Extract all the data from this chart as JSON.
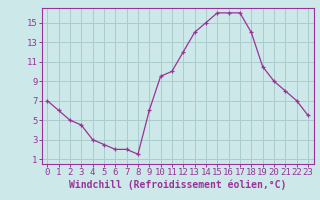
{
  "x": [
    0,
    1,
    2,
    3,
    4,
    5,
    6,
    7,
    8,
    9,
    10,
    11,
    12,
    13,
    14,
    15,
    16,
    17,
    18,
    19,
    20,
    21,
    22,
    23
  ],
  "y": [
    7,
    6,
    5,
    4.5,
    3,
    2.5,
    2,
    2,
    1.5,
    6,
    9.5,
    10,
    12,
    14,
    15,
    16,
    16,
    16,
    14,
    10.5,
    9,
    8,
    7,
    5.5
  ],
  "line_color": "#993399",
  "marker": "+",
  "bg_color": "#cce8e8",
  "grid_color": "#aacccc",
  "xlabel": "Windchill (Refroidissement éolien,°C)",
  "ylabel_ticks": [
    1,
    3,
    5,
    7,
    9,
    11,
    13,
    15
  ],
  "xtick_labels": [
    "0",
    "1",
    "2",
    "3",
    "4",
    "5",
    "6",
    "7",
    "8",
    "9",
    "10",
    "11",
    "12",
    "13",
    "14",
    "15",
    "16",
    "17",
    "18",
    "19",
    "20",
    "21",
    "22",
    "23"
  ],
  "xlim": [
    -0.5,
    23.5
  ],
  "ylim": [
    0.5,
    16.5
  ],
  "axis_color": "#993399",
  "tick_color": "#993399",
  "label_color": "#993399",
  "font_size": 6.5,
  "xlabel_fontsize": 7
}
